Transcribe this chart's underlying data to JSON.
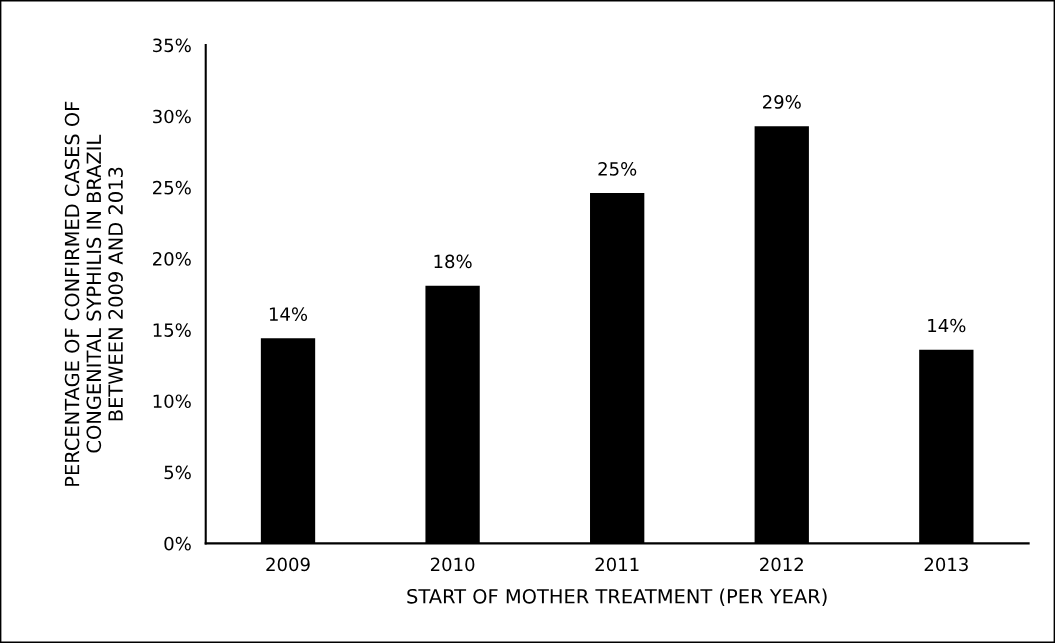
{
  "chart_data": {
    "type": "bar",
    "categories": [
      "2009",
      "2010",
      "2011",
      "2012",
      "2013"
    ],
    "values": [
      14.4,
      18.1,
      24.6,
      29.3,
      13.6
    ],
    "value_labels": [
      "14%",
      "18%",
      "25%",
      "29%",
      "14%"
    ],
    "color": "#000000",
    "xlabel": "START OF MOTHER TREATMENT (PER YEAR)",
    "ylabel": "PERCENTAGE OF CONFIRMED CASES OF\nCONGENITAL SYPHILIS IN BRAZIL\nBETWEEN 2009 AND 2013",
    "ylim": [
      0,
      35
    ],
    "yticks": [
      {
        "value": 0,
        "label": "0%"
      },
      {
        "value": 5,
        "label": "5%"
      },
      {
        "value": 10,
        "label": "10%"
      },
      {
        "value": 15,
        "label": "15%"
      },
      {
        "value": 20,
        "label": "20%"
      },
      {
        "value": 25,
        "label": "25%"
      },
      {
        "value": 30,
        "label": "30%"
      },
      {
        "value": 35,
        "label": "35%"
      }
    ],
    "grid": false,
    "legend": false
  }
}
